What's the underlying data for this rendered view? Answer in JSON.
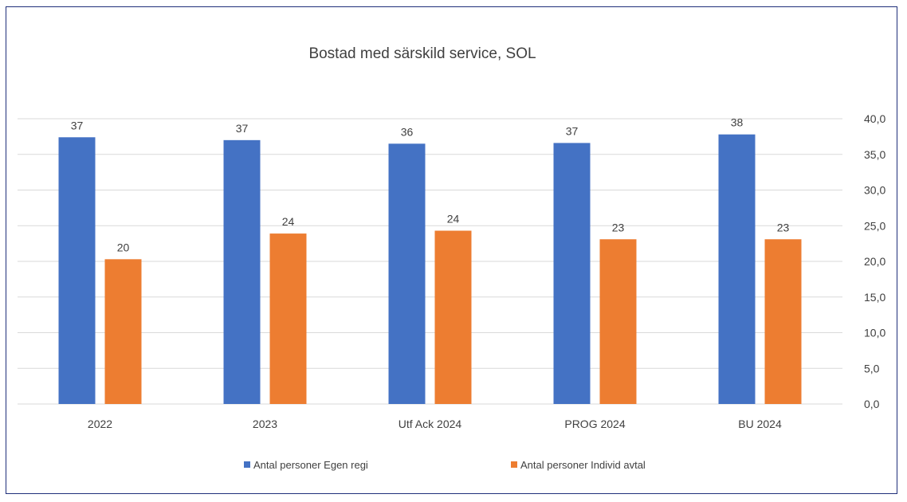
{
  "chart_data": {
    "type": "bar",
    "title": "Bostad med särskild service, SOL",
    "categories": [
      "2022",
      "2023",
      "Utf Ack 2024",
      "PROG 2024",
      "BU 2024"
    ],
    "series": [
      {
        "name": "Antal personer Egen regi",
        "color": "#4472c4",
        "values": [
          37.4,
          37.0,
          36.5,
          36.6,
          37.8
        ],
        "labels": [
          "37",
          "37",
          "36",
          "37",
          "38"
        ]
      },
      {
        "name": "Antal personer Individ avtal",
        "color": "#ed7d31",
        "values": [
          20.3,
          23.9,
          24.3,
          23.1,
          23.1
        ],
        "labels": [
          "20",
          "24",
          "24",
          "23",
          "23"
        ]
      }
    ],
    "ylim": [
      0,
      40
    ],
    "yticks": [
      "0,0",
      "5,0",
      "10,0",
      "15,0",
      "20,0",
      "25,0",
      "30,0",
      "35,0",
      "40,0"
    ],
    "yaxis_side": "right",
    "grid": true,
    "legend": "bottom",
    "xlabel": "",
    "ylabel": ""
  }
}
